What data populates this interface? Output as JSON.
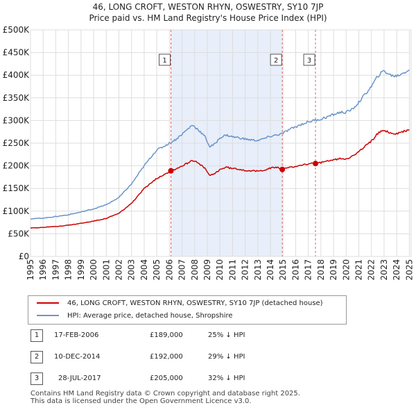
{
  "chart_data": {
    "type": "line",
    "title": "46, LONG CROFT, WESTON RHYN, OSWESTRY, SY10 7JP",
    "subtitle": "Price paid vs. HM Land Registry's House Price Index (HPI)",
    "xlim": [
      1995.0,
      2025.2
    ],
    "ylim": [
      0,
      500000
    ],
    "x_ticks": [
      "1995",
      "1996",
      "1997",
      "1998",
      "1999",
      "2000",
      "2001",
      "2002",
      "2003",
      "2004",
      "2005",
      "2006",
      "2007",
      "2008",
      "2009",
      "2010",
      "2011",
      "2012",
      "2013",
      "2014",
      "2015",
      "2016",
      "2017",
      "2018",
      "2019",
      "2020",
      "2021",
      "2022",
      "2023",
      "2024",
      "2025"
    ],
    "y_ticks": [
      {
        "value": 0,
        "label": "£0"
      },
      {
        "value": 50000,
        "label": "£50K"
      },
      {
        "value": 100000,
        "label": "£100K"
      },
      {
        "value": 150000,
        "label": "£150K"
      },
      {
        "value": 200000,
        "label": "£200K"
      },
      {
        "value": 250000,
        "label": "£250K"
      },
      {
        "value": 300000,
        "label": "£300K"
      },
      {
        "value": 350000,
        "label": "£350K"
      },
      {
        "value": 400000,
        "label": "£400K"
      },
      {
        "value": 450000,
        "label": "£450K"
      },
      {
        "value": 500000,
        "label": "£500K"
      }
    ],
    "shaded_span": [
      2006.12,
      2014.94
    ],
    "series": [
      {
        "name": "HPI: Average price, detached house, Shropshire",
        "color": "#6a95c9",
        "points": [
          [
            1995.0,
            83000
          ],
          [
            1996.0,
            84500
          ],
          [
            1997.0,
            88000
          ],
          [
            1998.0,
            92000
          ],
          [
            1999.0,
            98000
          ],
          [
            2000.0,
            105000
          ],
          [
            2001.0,
            114000
          ],
          [
            2002.0,
            130000
          ],
          [
            2003.0,
            160000
          ],
          [
            2003.5,
            180000
          ],
          [
            2004.0,
            200000
          ],
          [
            2004.5,
            218000
          ],
          [
            2005.0,
            235000
          ],
          [
            2005.5,
            242000
          ],
          [
            2006.0,
            250000
          ],
          [
            2006.5,
            258000
          ],
          [
            2007.0,
            270000
          ],
          [
            2007.5,
            282000
          ],
          [
            2007.8,
            290000
          ],
          [
            2008.2,
            282000
          ],
          [
            2008.8,
            265000
          ],
          [
            2009.2,
            242000
          ],
          [
            2009.6,
            248000
          ],
          [
            2010.0,
            262000
          ],
          [
            2010.5,
            268000
          ],
          [
            2011.0,
            264000
          ],
          [
            2011.5,
            262000
          ],
          [
            2012.0,
            259000
          ],
          [
            2012.5,
            257000
          ],
          [
            2013.0,
            256000
          ],
          [
            2013.5,
            260000
          ],
          [
            2014.0,
            265000
          ],
          [
            2014.5,
            268000
          ],
          [
            2014.94,
            271000
          ],
          [
            2015.5,
            280000
          ],
          [
            2016.0,
            286000
          ],
          [
            2016.5,
            292000
          ],
          [
            2017.0,
            297000
          ],
          [
            2017.57,
            301000
          ],
          [
            2018.0,
            303000
          ],
          [
            2018.5,
            308000
          ],
          [
            2019.0,
            313000
          ],
          [
            2019.5,
            318000
          ],
          [
            2020.0,
            318000
          ],
          [
            2020.5,
            325000
          ],
          [
            2021.0,
            340000
          ],
          [
            2021.5,
            358000
          ],
          [
            2022.0,
            375000
          ],
          [
            2022.5,
            398000
          ],
          [
            2023.0,
            410000
          ],
          [
            2023.5,
            400000
          ],
          [
            2024.0,
            398000
          ],
          [
            2024.5,
            405000
          ],
          [
            2025.0,
            412000
          ]
        ]
      },
      {
        "name": "46, LONG CROFT, WESTON RHYN, OSWESTRY, SY10 7JP (detached house)",
        "color": "#cc0000",
        "points": [
          [
            1995.0,
            63000
          ],
          [
            1996.0,
            64000
          ],
          [
            1997.0,
            66000
          ],
          [
            1998.0,
            69000
          ],
          [
            1999.0,
            73000
          ],
          [
            2000.0,
            78000
          ],
          [
            2001.0,
            84000
          ],
          [
            2002.0,
            95000
          ],
          [
            2003.0,
            117000
          ],
          [
            2003.5,
            133000
          ],
          [
            2004.0,
            150000
          ],
          [
            2004.5,
            162000
          ],
          [
            2005.0,
            172000
          ],
          [
            2005.5,
            180000
          ],
          [
            2006.12,
            189000
          ],
          [
            2006.5,
            193000
          ],
          [
            2007.0,
            200000
          ],
          [
            2007.5,
            207000
          ],
          [
            2007.8,
            213000
          ],
          [
            2008.2,
            207000
          ],
          [
            2008.8,
            195000
          ],
          [
            2009.2,
            178000
          ],
          [
            2009.6,
            183000
          ],
          [
            2010.0,
            192000
          ],
          [
            2010.5,
            197000
          ],
          [
            2011.0,
            194000
          ],
          [
            2011.5,
            193000
          ],
          [
            2012.0,
            190000
          ],
          [
            2012.5,
            189000
          ],
          [
            2013.0,
            188000
          ],
          [
            2013.5,
            191000
          ],
          [
            2014.0,
            195000
          ],
          [
            2014.5,
            197000
          ],
          [
            2014.94,
            192000
          ],
          [
            2015.5,
            196000
          ],
          [
            2016.0,
            199000
          ],
          [
            2016.5,
            202000
          ],
          [
            2017.0,
            204000
          ],
          [
            2017.57,
            205000
          ],
          [
            2018.0,
            207000
          ],
          [
            2018.5,
            210000
          ],
          [
            2019.0,
            213000
          ],
          [
            2019.5,
            216000
          ],
          [
            2020.0,
            216000
          ],
          [
            2020.5,
            221000
          ],
          [
            2021.0,
            231000
          ],
          [
            2021.5,
            243000
          ],
          [
            2022.0,
            255000
          ],
          [
            2022.5,
            271000
          ],
          [
            2023.0,
            279000
          ],
          [
            2023.5,
            272000
          ],
          [
            2024.0,
            271000
          ],
          [
            2024.5,
            275000
          ],
          [
            2025.0,
            280000
          ]
        ]
      }
    ],
    "sales": [
      {
        "id": "1",
        "x": 2006.12,
        "value": 189000,
        "date": "17-FEB-2006",
        "price": "£189,000",
        "hpi": "25% ↓ HPI"
      },
      {
        "id": "2",
        "x": 2014.94,
        "value": 192000,
        "date": "10-DEC-2014",
        "price": "£192,000",
        "hpi": "29% ↓ HPI"
      },
      {
        "id": "3",
        "x": 2017.57,
        "value": 205000,
        "date": "28-JUL-2017",
        "price": "£205,000",
        "hpi": "32% ↓ HPI"
      }
    ]
  },
  "legend": {
    "property_label": "46, LONG CROFT, WESTON RHYN, OSWESTRY, SY10 7JP (detached house)",
    "hpi_label": "HPI: Average price, detached house, Shropshire"
  },
  "footer": {
    "line1": "Contains HM Land Registry data © Crown copyright and database right 2025.",
    "line2": "This data is licensed under the Open Government Licence v3.0."
  },
  "colors": {
    "property": "#cc0000",
    "hpi": "#6a95c9",
    "shade": "#e8eefa",
    "grid": "#dddddd",
    "marker_line": "#e06060"
  }
}
